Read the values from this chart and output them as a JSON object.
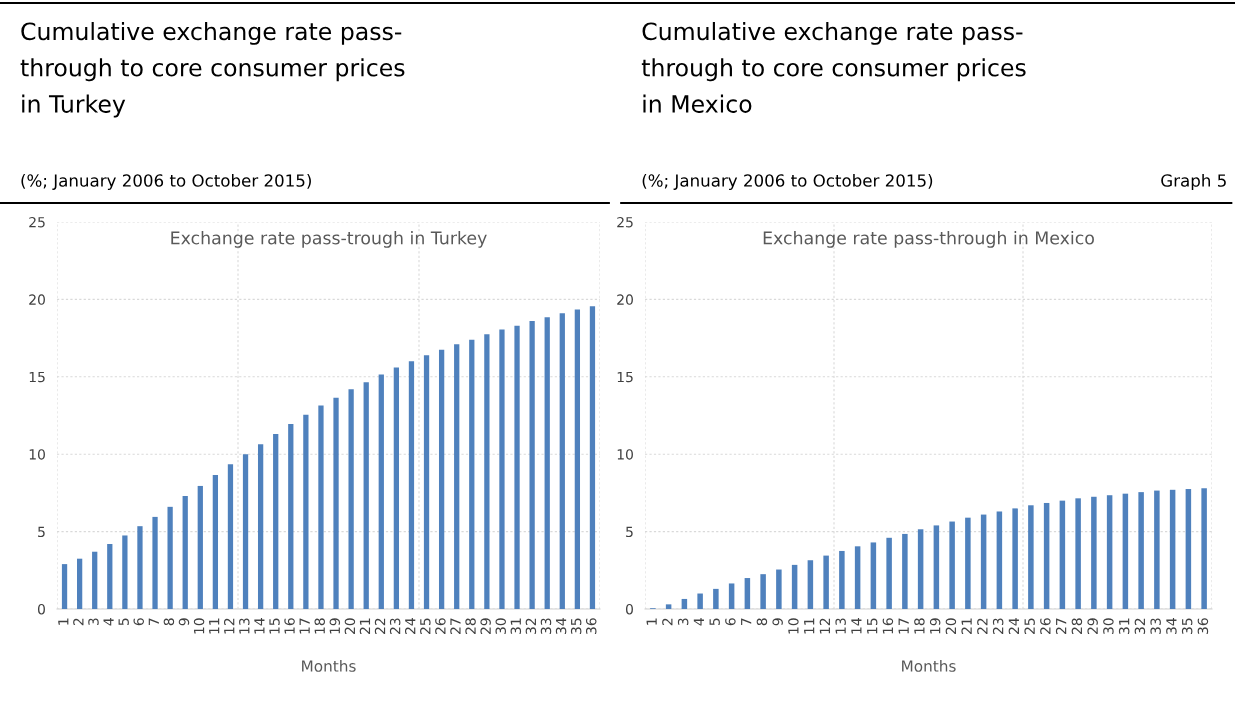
{
  "chart_data": [
    {
      "type": "bar",
      "title": "Cumulative exchange rate pass-\nthrough to core consumer prices\nin Turkey",
      "subtitle": "(%; January 2006 to October 2015)",
      "xlabel": "Months",
      "annotations": [
        "Exchange rate pass-trough in Turkey"
      ],
      "categories": [
        "1",
        "2",
        "3",
        "4",
        "5",
        "6",
        "7",
        "8",
        "9",
        "10",
        "11",
        "12",
        "13",
        "14",
        "15",
        "16",
        "17",
        "18",
        "19",
        "20",
        "21",
        "22",
        "23",
        "24",
        "25",
        "26",
        "27",
        "28",
        "29",
        "30",
        "31",
        "32",
        "33",
        "34",
        "35",
        "36"
      ],
      "series": [
        {
          "color": "#4f81bd",
          "values": [
            2.9,
            3.25,
            3.7,
            4.2,
            4.75,
            5.35,
            5.95,
            6.6,
            7.3,
            7.95,
            8.65,
            9.35,
            10.0,
            10.65,
            11.3,
            11.95,
            12.55,
            13.15,
            13.65,
            14.2,
            14.65,
            15.15,
            15.6,
            16.0,
            16.4,
            16.75,
            17.1,
            17.4,
            17.75,
            18.05,
            18.3,
            18.6,
            18.85,
            19.1,
            19.35,
            19.55
          ]
        }
      ],
      "ylim": [
        0,
        25
      ],
      "yticks": [
        0,
        5,
        10,
        15,
        20,
        25
      ],
      "grid": true
    },
    {
      "type": "bar",
      "title": "Cumulative exchange rate pass-\nthrough to core consumer prices\nin Mexico",
      "subtitle": "(%; January 2006 to October 2015)",
      "xlabel": "Months",
      "annotations": [
        "Exchange rate pass-through in Mexico",
        "Graph 5"
      ],
      "categories": [
        "1",
        "2",
        "3",
        "4",
        "5",
        "6",
        "7",
        "8",
        "9",
        "10",
        "11",
        "12",
        "13",
        "14",
        "15",
        "16",
        "17",
        "18",
        "19",
        "20",
        "21",
        "22",
        "23",
        "24",
        "25",
        "26",
        "27",
        "28",
        "29",
        "30",
        "31",
        "32",
        "33",
        "34",
        "35",
        "36"
      ],
      "series": [
        {
          "color": "#4f81bd",
          "values": [
            0.05,
            0.3,
            0.65,
            1.0,
            1.3,
            1.65,
            2.0,
            2.25,
            2.55,
            2.85,
            3.15,
            3.45,
            3.75,
            4.05,
            4.3,
            4.6,
            4.85,
            5.15,
            5.4,
            5.65,
            5.9,
            6.1,
            6.3,
            6.5,
            6.7,
            6.85,
            7.0,
            7.15,
            7.25,
            7.35,
            7.45,
            7.55,
            7.65,
            7.7,
            7.75,
            7.8
          ]
        }
      ],
      "ylim": [
        0,
        25
      ],
      "yticks": [
        0,
        5,
        10,
        15,
        20,
        25
      ],
      "grid": true
    }
  ]
}
